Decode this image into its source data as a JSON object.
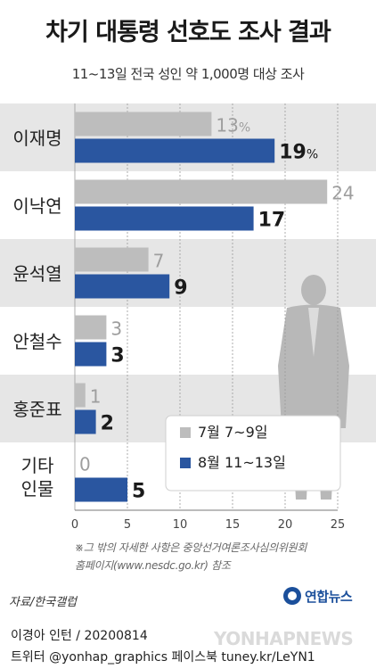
{
  "title": "차기 대통령 선호도 조사 결과",
  "subtitle": "11~13일 전국 성인 약 1,000명 대상 조사",
  "chart_data": {
    "type": "bar",
    "orientation": "horizontal",
    "categories": [
      "이재명",
      "이낙연",
      "윤석열",
      "안철수",
      "홍준표",
      "기타 인물"
    ],
    "category_lines": [
      [
        "이재명"
      ],
      [
        "이낙연"
      ],
      [
        "윤석열"
      ],
      [
        "안철수"
      ],
      [
        "홍준표"
      ],
      [
        "기타",
        "인물"
      ]
    ],
    "series": [
      {
        "name": "7월 7~9일",
        "values": [
          13,
          24,
          7,
          3,
          1,
          0
        ],
        "labels": [
          "13%",
          "24",
          "7",
          "3",
          "1",
          "0"
        ],
        "color": "#bdbdbd"
      },
      {
        "name": "8월 11~13일",
        "values": [
          19,
          17,
          9,
          3,
          2,
          5
        ],
        "labels": [
          "19%",
          "17",
          "9",
          "3",
          "2",
          "5"
        ],
        "color": "#2a56a0"
      }
    ],
    "xlim": [
      0,
      25
    ],
    "xticks": [
      0,
      5,
      10,
      15,
      20,
      25
    ],
    "grid": true,
    "legend": "bottom-right"
  },
  "footnote": [
    "※그 밖의 자세한 사항은 중앙선거여론조사심의위원회",
    "홈페이지(www.nesdc.go.kr) 참조"
  ],
  "source": "자료/한국갤럽",
  "logo": "연합뉴스",
  "credit": "이경아 인턴 / 20200814",
  "social": "트위터 @yonhap_graphics  페이스북 tuney.kr/LeYN1",
  "watermark": "YONHAPNEWS",
  "colors": {
    "bg_band": "#e6e6e6",
    "silhouette": "#b8b8b8"
  }
}
